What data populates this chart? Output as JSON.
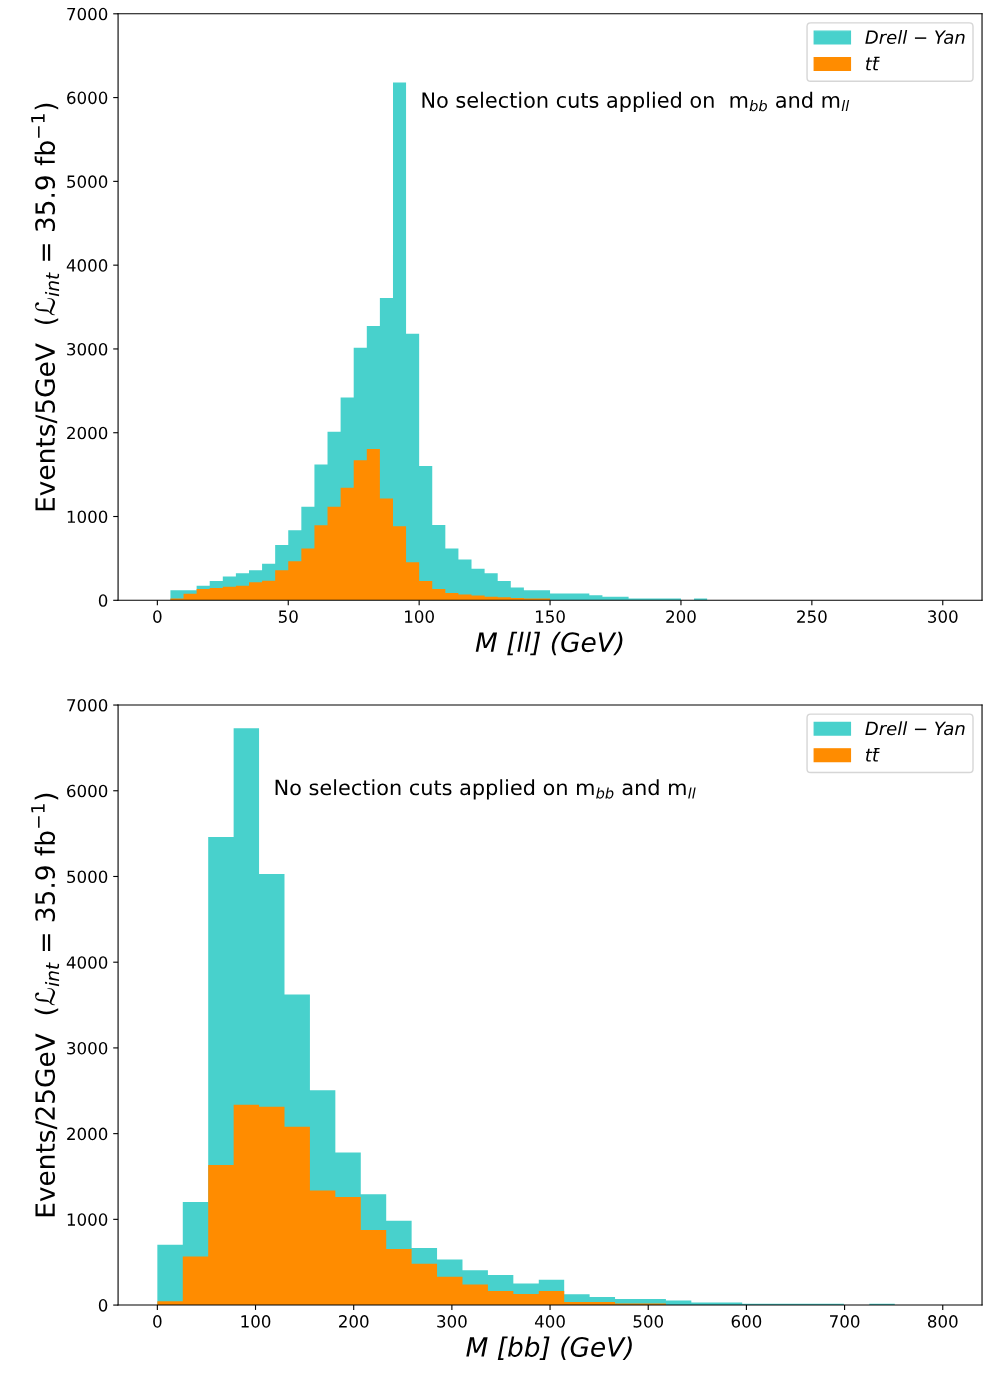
{
  "chart_data": [
    {
      "type": "histogram",
      "xlabel": "M [ll] (GeV)",
      "ylabel": "Events/5GeV  (ℒ$_{int}$ = 35.9 fb$^{−1}$)",
      "annotations": [
        "No selection cuts applied on  m$_{bb}$ and m$_{ll}$"
      ],
      "bins": [
        5,
        10,
        15,
        20,
        25,
        30,
        35,
        40,
        45,
        50,
        55,
        60,
        65,
        70,
        75,
        80,
        85,
        90,
        95,
        100,
        105,
        110,
        115,
        120,
        125,
        130,
        135,
        140,
        145,
        150,
        155,
        160,
        165,
        170,
        175,
        180,
        185,
        190,
        195,
        200,
        205,
        210,
        215
      ],
      "series": [
        {
          "name": "Drell − Yan",
          "color": "#48d1cc",
          "values": [
            120,
            120,
            175,
            230,
            284,
            323,
            358,
            436,
            661,
            836,
            1117,
            1622,
            2011,
            2419,
            3014,
            3275,
            3609,
            6180,
            3182,
            1602,
            898,
            618,
            486,
            377,
            323,
            230,
            152,
            120,
            120,
            82,
            82,
            82,
            59,
            41,
            41,
            20,
            20,
            20,
            20,
            0,
            20,
            0
          ]
        },
        {
          "name": "tt̄",
          "color": "#ff8c00",
          "values": [
            20,
            78,
            136,
            148,
            163,
            175,
            214,
            233,
            358,
            467,
            618,
            895,
            1117,
            1342,
            1672,
            1805,
            1214,
            883,
            455,
            230,
            136,
            86,
            70,
            58,
            43,
            35,
            27,
            20,
            20,
            0,
            0,
            0,
            0,
            0,
            0,
            0,
            0,
            0,
            0,
            0,
            0,
            0
          ]
        }
      ],
      "xlim": [
        -15,
        315
      ],
      "xticks": [
        0,
        50,
        100,
        150,
        200,
        250,
        300
      ],
      "ylim": [
        0,
        7000
      ],
      "yticks": [
        0,
        1000,
        2000,
        3000,
        4000,
        5000,
        6000,
        7000
      ],
      "legend": "top right"
    },
    {
      "type": "histogram",
      "xlabel": "M [bb] (GeV)",
      "ylabel": "Events/25GeV  (ℒ$_{int}$ = 35.9 fb$^{−1}$)",
      "annotations": [
        "No selection cuts applied on m$_{bb}$ and m$_{ll}$"
      ],
      "bins": [
        0,
        25.9,
        51.8,
        77.7,
        103.6,
        129.5,
        155.4,
        181.3,
        207.2,
        233.1,
        259,
        284.9,
        310.8,
        336.7,
        362.6,
        388.5,
        414.4,
        440.3,
        466.2,
        492.1,
        518,
        543.9,
        569.8,
        595.7,
        621.6,
        647.5,
        673.4,
        699.3,
        725.2,
        751.1,
        777
      ],
      "series": [
        {
          "name": "Drell − Yan",
          "color": "#48d1cc",
          "values": [
            703,
            1202,
            5461,
            6728,
            5030,
            3622,
            2505,
            1779,
            1293,
            985,
            665,
            533,
            405,
            350,
            253,
            295,
            125,
            93,
            70,
            70,
            54,
            31,
            31,
            16,
            16,
            16,
            16,
            0,
            16,
            0
          ]
        },
        {
          "name": "tt̄",
          "color": "#ff8c00",
          "values": [
            44,
            567,
            1634,
            2337,
            2315,
            2079,
            1338,
            1261,
            875,
            653,
            482,
            330,
            241,
            163,
            128,
            163,
            35,
            35,
            19,
            19,
            0,
            0,
            0,
            0,
            0,
            0,
            0,
            0,
            0,
            0
          ]
        }
      ],
      "xlim": [
        -40,
        840
      ],
      "xticks": [
        0,
        100,
        200,
        300,
        400,
        500,
        600,
        700,
        800
      ],
      "ylim": [
        0,
        7000
      ],
      "yticks": [
        0,
        1000,
        2000,
        3000,
        4000,
        5000,
        6000,
        7000
      ],
      "legend": "top right"
    }
  ]
}
